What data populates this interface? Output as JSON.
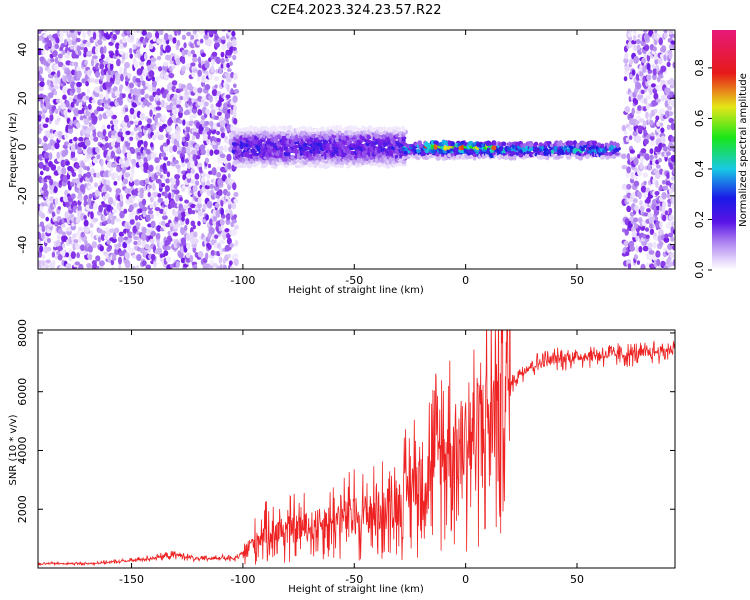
{
  "title": "C2E4.2023.324.23.57.R22",
  "colors": {
    "snr_line": "#ee2222",
    "spectrogram_background": "#ffffff",
    "colormap": [
      "#ffffff",
      "#e6d7fb",
      "#b58cf0",
      "#7a1ee6",
      "#1a1ae6",
      "#19c8e6",
      "#19e619",
      "#e6e619",
      "#e61919",
      "#e6197a"
    ]
  },
  "chart_data": [
    {
      "type": "heatmap",
      "panel": "spectrogram",
      "xlabel": "Height of straight line (km)",
      "ylabel": "Frequency (Hz)",
      "xlim": [
        -192,
        94
      ],
      "ylim": [
        -50,
        48
      ],
      "xticks": [
        -150,
        -100,
        -50,
        0,
        50
      ],
      "yticks": [
        -40,
        -20,
        0,
        20,
        40
      ],
      "grid": false,
      "colorbar": {
        "label": "Normalized spectral amplitude",
        "range": [
          0.0,
          0.95
        ],
        "ticks": [
          0.0,
          0.2,
          0.4,
          0.6,
          0.8
        ]
      },
      "features": [
        {
          "x_range": [
            -192,
            -104
          ],
          "description_level": "noise",
          "freq_range": [
            -50,
            48
          ],
          "amplitude": 0.35
        },
        {
          "x_range": [
            -104,
            -28
          ],
          "freq_center": 0,
          "freq_halfwidth": 6,
          "amplitude": 0.45
        },
        {
          "x_range": [
            -28,
            68
          ],
          "freq_center": -1,
          "freq_halfwidth": 2.5,
          "amplitude": 0.6
        },
        {
          "x_range": [
            -18,
            12
          ],
          "freq_center": 0,
          "freq_halfwidth": 1.5,
          "amplitude": 0.9
        },
        {
          "x_range": [
            71,
            94
          ],
          "description_level": "noise",
          "freq_range": [
            -50,
            48
          ],
          "amplitude": 0.35
        }
      ]
    },
    {
      "type": "line",
      "panel": "snr",
      "xlabel": "Height of straight line (km)",
      "ylabel": "SNR (10 * v/v)",
      "xlim": [
        -192,
        94
      ],
      "ylim": [
        0,
        8100
      ],
      "xticks": [
        -150,
        -100,
        -50,
        0,
        50
      ],
      "yticks": [
        2000,
        4000,
        6000,
        8000
      ],
      "grid": false,
      "series": [
        {
          "x": [
            -192,
            -170,
            -150,
            -140,
            -130,
            -120,
            -110,
            -104,
            -100,
            -95,
            -90,
            -80,
            -70,
            -60,
            -50,
            -40,
            -30,
            -25,
            -20,
            -15,
            -10,
            -5,
            0,
            5,
            10,
            15,
            20,
            25,
            30,
            40,
            50,
            60,
            70,
            80,
            90,
            94
          ],
          "values": [
            150,
            150,
            250,
            350,
            450,
            300,
            350,
            300,
            500,
            900,
            1200,
            1300,
            1400,
            1600,
            1800,
            1900,
            2200,
            2700,
            3200,
            3600,
            4000,
            4100,
            4400,
            4800,
            5000,
            5500,
            6200,
            6700,
            6900,
            7100,
            7200,
            7250,
            7250,
            7300,
            7400,
            7450
          ]
        }
      ]
    }
  ]
}
